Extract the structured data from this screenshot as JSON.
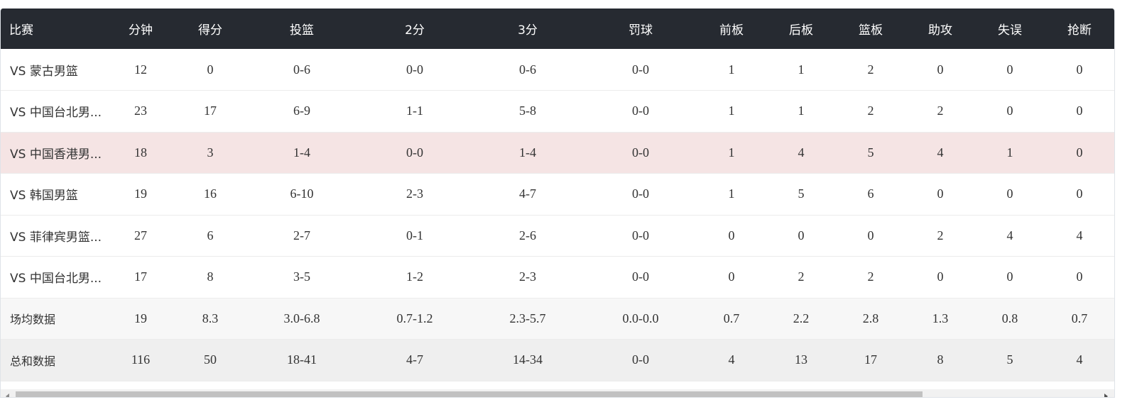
{
  "table": {
    "headers": [
      "比赛",
      "分钟",
      "得分",
      "投篮",
      "2分",
      "3分",
      "罚球",
      "前板",
      "后板",
      "篮板",
      "助攻",
      "失误",
      "抢断"
    ],
    "rows": [
      {
        "cells": [
          "VS 蒙古男篮",
          "12",
          "0",
          "0-6",
          "0-0",
          "0-6",
          "0-0",
          "1",
          "1",
          "2",
          "0",
          "0",
          "0"
        ]
      },
      {
        "cells": [
          "VS 中国台北男...",
          "23",
          "17",
          "6-9",
          "1-1",
          "5-8",
          "0-0",
          "1",
          "1",
          "2",
          "2",
          "0",
          "0"
        ]
      },
      {
        "cells": [
          "VS 中国香港男...",
          "18",
          "3",
          "1-4",
          "0-0",
          "1-4",
          "0-0",
          "1",
          "4",
          "5",
          "4",
          "1",
          "0"
        ]
      },
      {
        "cells": [
          "VS 韩国男篮",
          "19",
          "16",
          "6-10",
          "2-3",
          "4-7",
          "0-0",
          "1",
          "5",
          "6",
          "0",
          "0",
          "0"
        ]
      },
      {
        "cells": [
          "VS 菲律宾男篮...",
          "27",
          "6",
          "2-7",
          "0-1",
          "2-6",
          "0-0",
          "0",
          "0",
          "0",
          "2",
          "4",
          "4"
        ]
      },
      {
        "cells": [
          "VS 中国台北男...",
          "17",
          "8",
          "3-5",
          "1-2",
          "2-3",
          "0-0",
          "0",
          "2",
          "2",
          "0",
          "0",
          "0"
        ]
      },
      {
        "cells": [
          "场均数据",
          "19",
          "8.3",
          "3.0-6.8",
          "0.7-1.2",
          "2.3-5.7",
          "0.0-0.0",
          "0.7",
          "2.2",
          "2.8",
          "1.3",
          "0.8",
          "0.7"
        ]
      },
      {
        "cells": [
          "总和数据",
          "116",
          "50",
          "18-41",
          "4-7",
          "14-34",
          "0-0",
          "4",
          "13",
          "17",
          "8",
          "5",
          "4"
        ]
      }
    ]
  },
  "colors": {
    "header_bg": "#262a31",
    "highlight_row_bg": "#f5e4e4"
  }
}
